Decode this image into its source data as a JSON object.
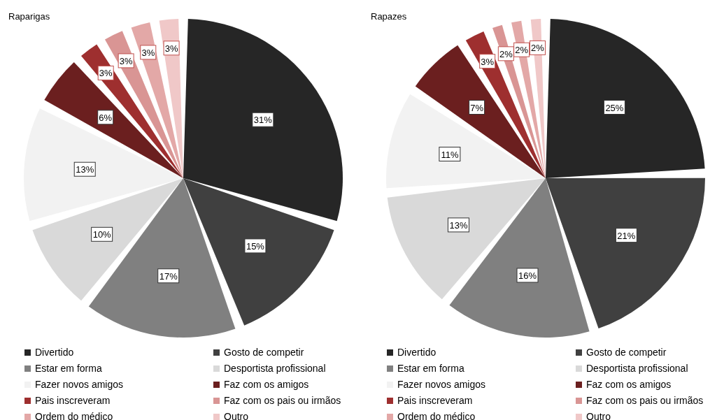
{
  "chart_data": [
    {
      "type": "pie",
      "title": "Raparigas",
      "categories": [
        "Divertido",
        "Gosto de competir",
        "Estar em forma",
        "Desportista profissional",
        "Fazer novos amigos",
        "Faz com os amigos",
        "Pais inscreveram",
        "Faz com os pais ou irmãos",
        "Ordem do médico",
        "Outro"
      ],
      "values": [
        31,
        15,
        17,
        10,
        13,
        6,
        3,
        3,
        3,
        3
      ],
      "value_labels": [
        "31%",
        "15%",
        "17%",
        "10%",
        "13%",
        "6%",
        "3%",
        "3%",
        "3%",
        "3%"
      ],
      "colors": [
        "#262626",
        "#404040",
        "#808080",
        "#d9d9d9",
        "#f2f2f2",
        "#6b1f1f",
        "#9e2f2f",
        "#d99594",
        "#e3a8a7",
        "#f0c8c8"
      ],
      "legend": "bottom"
    },
    {
      "type": "pie",
      "title": "Rapazes",
      "categories": [
        "Divertido",
        "Gosto de competir",
        "Estar em forma",
        "Desportista profissional",
        "Fazer novos amigos",
        "Faz com os amigos",
        "Pais inscreveram",
        "Faz com os pais ou irmãos",
        "Ordem do médico",
        "Outro"
      ],
      "values": [
        25,
        21,
        16,
        13,
        11,
        7,
        3,
        2,
        2,
        2
      ],
      "value_labels": [
        "25%",
        "21%",
        "16%",
        "13%",
        "11%",
        "7%",
        "3%",
        "2%",
        "2%",
        "2%"
      ],
      "colors": [
        "#262626",
        "#404040",
        "#808080",
        "#d9d9d9",
        "#f2f2f2",
        "#6b1f1f",
        "#9e2f2f",
        "#d99594",
        "#e3a8a7",
        "#f0c8c8"
      ],
      "legend": "bottom"
    }
  ]
}
